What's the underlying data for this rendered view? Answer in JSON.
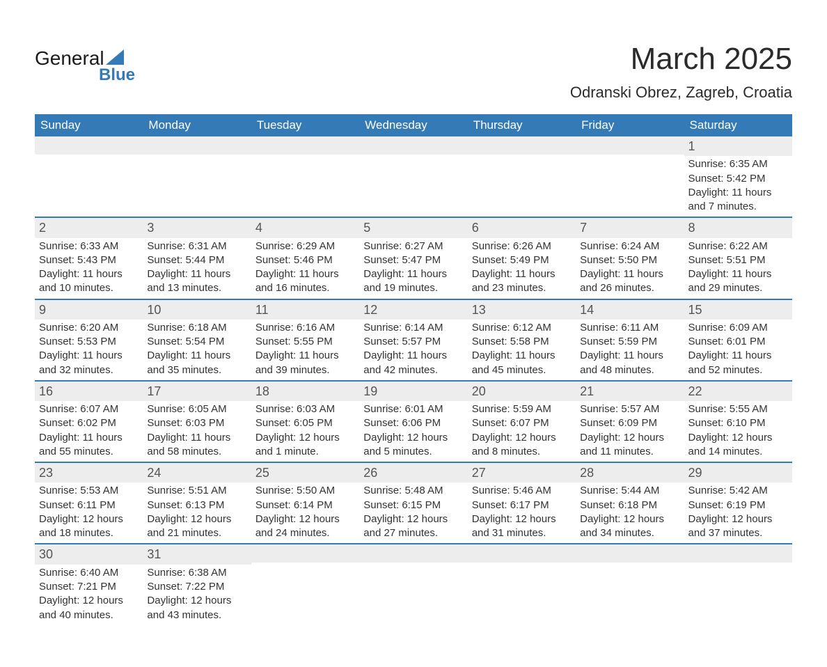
{
  "brand": {
    "name_part1": "General",
    "name_part2": "Blue",
    "icon_color": "#337ab7"
  },
  "title": "March 2025",
  "location": "Odranski Obrez, Zagreb, Croatia",
  "colors": {
    "header_bg": "#337ab7",
    "header_text": "#ffffff",
    "row_sep": "#337ab7",
    "daynum_bg": "#ededed",
    "body_text": "#333333"
  },
  "day_headers": [
    "Sunday",
    "Monday",
    "Tuesday",
    "Wednesday",
    "Thursday",
    "Friday",
    "Saturday"
  ],
  "weeks": [
    [
      null,
      null,
      null,
      null,
      null,
      null,
      {
        "n": "1",
        "sunrise": "6:35 AM",
        "sunset": "5:42 PM",
        "daylight": "11 hours and 7 minutes."
      }
    ],
    [
      {
        "n": "2",
        "sunrise": "6:33 AM",
        "sunset": "5:43 PM",
        "daylight": "11 hours and 10 minutes."
      },
      {
        "n": "3",
        "sunrise": "6:31 AM",
        "sunset": "5:44 PM",
        "daylight": "11 hours and 13 minutes."
      },
      {
        "n": "4",
        "sunrise": "6:29 AM",
        "sunset": "5:46 PM",
        "daylight": "11 hours and 16 minutes."
      },
      {
        "n": "5",
        "sunrise": "6:27 AM",
        "sunset": "5:47 PM",
        "daylight": "11 hours and 19 minutes."
      },
      {
        "n": "6",
        "sunrise": "6:26 AM",
        "sunset": "5:49 PM",
        "daylight": "11 hours and 23 minutes."
      },
      {
        "n": "7",
        "sunrise": "6:24 AM",
        "sunset": "5:50 PM",
        "daylight": "11 hours and 26 minutes."
      },
      {
        "n": "8",
        "sunrise": "6:22 AM",
        "sunset": "5:51 PM",
        "daylight": "11 hours and 29 minutes."
      }
    ],
    [
      {
        "n": "9",
        "sunrise": "6:20 AM",
        "sunset": "5:53 PM",
        "daylight": "11 hours and 32 minutes."
      },
      {
        "n": "10",
        "sunrise": "6:18 AM",
        "sunset": "5:54 PM",
        "daylight": "11 hours and 35 minutes."
      },
      {
        "n": "11",
        "sunrise": "6:16 AM",
        "sunset": "5:55 PM",
        "daylight": "11 hours and 39 minutes."
      },
      {
        "n": "12",
        "sunrise": "6:14 AM",
        "sunset": "5:57 PM",
        "daylight": "11 hours and 42 minutes."
      },
      {
        "n": "13",
        "sunrise": "6:12 AM",
        "sunset": "5:58 PM",
        "daylight": "11 hours and 45 minutes."
      },
      {
        "n": "14",
        "sunrise": "6:11 AM",
        "sunset": "5:59 PM",
        "daylight": "11 hours and 48 minutes."
      },
      {
        "n": "15",
        "sunrise": "6:09 AM",
        "sunset": "6:01 PM",
        "daylight": "11 hours and 52 minutes."
      }
    ],
    [
      {
        "n": "16",
        "sunrise": "6:07 AM",
        "sunset": "6:02 PM",
        "daylight": "11 hours and 55 minutes."
      },
      {
        "n": "17",
        "sunrise": "6:05 AM",
        "sunset": "6:03 PM",
        "daylight": "11 hours and 58 minutes."
      },
      {
        "n": "18",
        "sunrise": "6:03 AM",
        "sunset": "6:05 PM",
        "daylight": "12 hours and 1 minute."
      },
      {
        "n": "19",
        "sunrise": "6:01 AM",
        "sunset": "6:06 PM",
        "daylight": "12 hours and 5 minutes."
      },
      {
        "n": "20",
        "sunrise": "5:59 AM",
        "sunset": "6:07 PM",
        "daylight": "12 hours and 8 minutes."
      },
      {
        "n": "21",
        "sunrise": "5:57 AM",
        "sunset": "6:09 PM",
        "daylight": "12 hours and 11 minutes."
      },
      {
        "n": "22",
        "sunrise": "5:55 AM",
        "sunset": "6:10 PM",
        "daylight": "12 hours and 14 minutes."
      }
    ],
    [
      {
        "n": "23",
        "sunrise": "5:53 AM",
        "sunset": "6:11 PM",
        "daylight": "12 hours and 18 minutes."
      },
      {
        "n": "24",
        "sunrise": "5:51 AM",
        "sunset": "6:13 PM",
        "daylight": "12 hours and 21 minutes."
      },
      {
        "n": "25",
        "sunrise": "5:50 AM",
        "sunset": "6:14 PM",
        "daylight": "12 hours and 24 minutes."
      },
      {
        "n": "26",
        "sunrise": "5:48 AM",
        "sunset": "6:15 PM",
        "daylight": "12 hours and 27 minutes."
      },
      {
        "n": "27",
        "sunrise": "5:46 AM",
        "sunset": "6:17 PM",
        "daylight": "12 hours and 31 minutes."
      },
      {
        "n": "28",
        "sunrise": "5:44 AM",
        "sunset": "6:18 PM",
        "daylight": "12 hours and 34 minutes."
      },
      {
        "n": "29",
        "sunrise": "5:42 AM",
        "sunset": "6:19 PM",
        "daylight": "12 hours and 37 minutes."
      }
    ],
    [
      {
        "n": "30",
        "sunrise": "6:40 AM",
        "sunset": "7:21 PM",
        "daylight": "12 hours and 40 minutes."
      },
      {
        "n": "31",
        "sunrise": "6:38 AM",
        "sunset": "7:22 PM",
        "daylight": "12 hours and 43 minutes."
      },
      null,
      null,
      null,
      null,
      null
    ]
  ],
  "labels": {
    "sunrise": "Sunrise: ",
    "sunset": "Sunset: ",
    "daylight": "Daylight: "
  }
}
